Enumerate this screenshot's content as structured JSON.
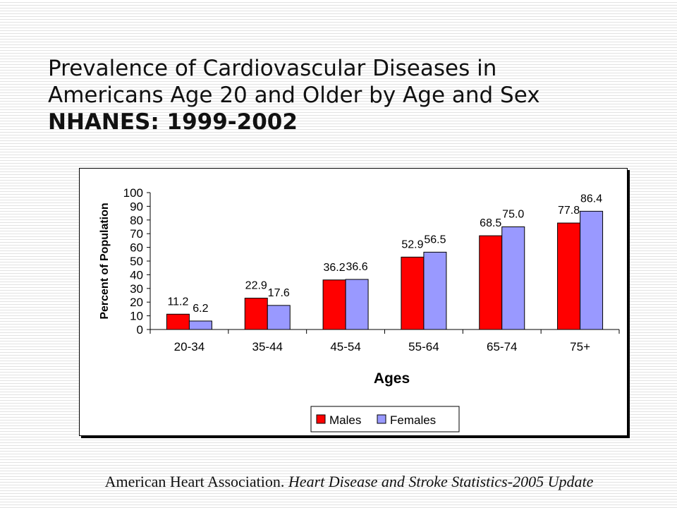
{
  "slide": {
    "title_lines": [
      "Prevalence of Cardiovascular Diseases in",
      "Americans Age 20 and Older by Age and Sex"
    ],
    "title_bold_line": "NHANES: 1999-2002",
    "caption_plain": "American Heart Association. ",
    "caption_italic": "Heart Disease and Stroke Statistics-2005 Update"
  },
  "chart_data": {
    "type": "bar",
    "title": "",
    "xlabel": "Ages",
    "ylabel": "Percent of Population",
    "categories": [
      "20-34",
      "35-44",
      "45-54",
      "55-64",
      "65-74",
      "75+"
    ],
    "series": [
      {
        "name": "Males",
        "values": [
          11.2,
          22.9,
          36.2,
          52.9,
          68.5,
          77.8
        ],
        "color": "#ff0000"
      },
      {
        "name": "Females",
        "values": [
          6.2,
          17.6,
          36.6,
          56.5,
          75.0,
          86.4
        ],
        "color": "#9999ff"
      }
    ],
    "data_labels": [
      [
        "11.2",
        "22.9",
        "36.2",
        "52.9",
        "68.5",
        "77.8"
      ],
      [
        "6.2",
        "17.6",
        "36.6",
        "56.5",
        "75.0",
        "86.4"
      ]
    ],
    "ylim": [
      0,
      100
    ],
    "yticks": [
      "0",
      "10",
      "20",
      "30",
      "40",
      "50",
      "60",
      "70",
      "80",
      "90",
      "100"
    ],
    "grid": false,
    "legend_position": "bottom-right"
  }
}
